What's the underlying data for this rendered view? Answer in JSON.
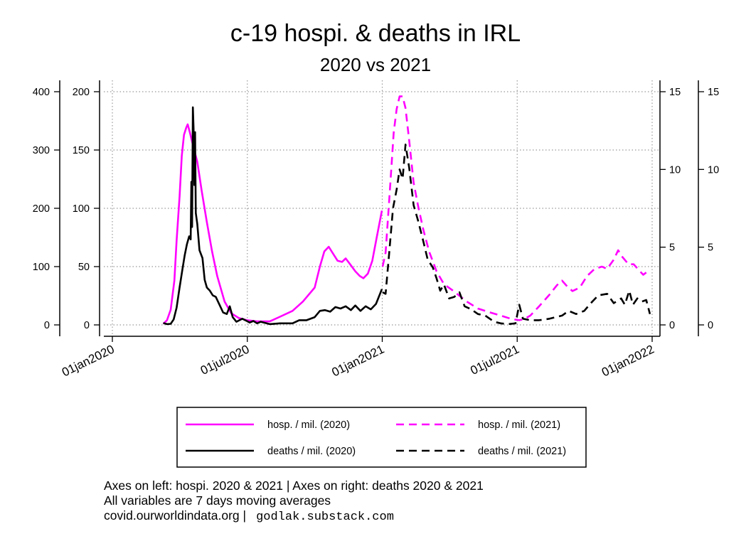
{
  "chart_data": {
    "type": "line",
    "title": "c-19 hospi. & deaths in IRL",
    "subtitle": "2020 vs 2021",
    "x_ticks": [
      "01jan2020",
      "01jul2020",
      "01jan2021",
      "01jul2021",
      "01jan2022"
    ],
    "y_axes": {
      "left_outer": {
        "ticks": [
          0,
          100,
          200,
          300,
          400
        ],
        "range": [
          0,
          400
        ]
      },
      "left_inner": {
        "ticks": [
          0,
          50,
          100,
          150,
          200
        ],
        "range": [
          0,
          200
        ]
      },
      "right_inner": {
        "ticks": [
          0,
          5,
          10,
          15
        ],
        "range": [
          0,
          15
        ]
      },
      "right_outer": {
        "ticks": [
          0,
          5,
          10,
          15
        ],
        "range": [
          0,
          15
        ]
      }
    },
    "grid": true,
    "legend_position": "bottom",
    "series": [
      {
        "name": "hosp. / mil. (2020)",
        "axis": "left_inner",
        "color": "#ff00ff",
        "dash": "solid",
        "points": [
          [
            "2020-03-10",
            1
          ],
          [
            "2020-03-15",
            4
          ],
          [
            "2020-03-20",
            13
          ],
          [
            "2020-03-25",
            38
          ],
          [
            "2020-03-28",
            72
          ],
          [
            "2020-04-01",
            110
          ],
          [
            "2020-04-04",
            145
          ],
          [
            "2020-04-07",
            163
          ],
          [
            "2020-04-10",
            169
          ],
          [
            "2020-04-12",
            172
          ],
          [
            "2020-04-15",
            165
          ],
          [
            "2020-04-20",
            152
          ],
          [
            "2020-04-25",
            140
          ],
          [
            "2020-05-01",
            115
          ],
          [
            "2020-05-08",
            88
          ],
          [
            "2020-05-15",
            63
          ],
          [
            "2020-05-22",
            42
          ],
          [
            "2020-06-01",
            20
          ],
          [
            "2020-06-10",
            10
          ],
          [
            "2020-06-20",
            6
          ],
          [
            "2020-07-01",
            4
          ],
          [
            "2020-07-15",
            3
          ],
          [
            "2020-08-01",
            3
          ],
          [
            "2020-08-15",
            7
          ],
          [
            "2020-09-01",
            12
          ],
          [
            "2020-09-15",
            20
          ],
          [
            "2020-10-01",
            32
          ],
          [
            "2020-10-08",
            50
          ],
          [
            "2020-10-14",
            63
          ],
          [
            "2020-10-20",
            67
          ],
          [
            "2020-10-25",
            62
          ],
          [
            "2020-11-01",
            55
          ],
          [
            "2020-11-07",
            54
          ],
          [
            "2020-11-12",
            57
          ],
          [
            "2020-11-18",
            52
          ],
          [
            "2020-11-25",
            46
          ],
          [
            "2020-12-01",
            42
          ],
          [
            "2020-12-06",
            40
          ],
          [
            "2020-12-12",
            44
          ],
          [
            "2020-12-18",
            55
          ],
          [
            "2020-12-24",
            75
          ],
          [
            "2020-12-31",
            98
          ]
        ]
      },
      {
        "name": "hosp. / mil. (2021)",
        "axis": "left_inner",
        "color": "#ff00ff",
        "dash": "dashed",
        "points": [
          [
            "2021-01-01",
            50
          ],
          [
            "2021-01-05",
            62
          ],
          [
            "2021-01-10",
            108
          ],
          [
            "2021-01-16",
            165
          ],
          [
            "2021-01-20",
            185
          ],
          [
            "2021-01-24",
            196
          ],
          [
            "2021-01-28",
            196
          ],
          [
            "2021-02-01",
            186
          ],
          [
            "2021-02-06",
            158
          ],
          [
            "2021-02-12",
            122
          ],
          [
            "2021-02-18",
            102
          ],
          [
            "2021-02-25",
            82
          ],
          [
            "2021-03-05",
            63
          ],
          [
            "2021-03-15",
            46
          ],
          [
            "2021-03-25",
            35
          ],
          [
            "2021-04-05",
            30
          ],
          [
            "2021-04-15",
            25
          ],
          [
            "2021-04-25",
            20
          ],
          [
            "2021-05-10",
            14
          ],
          [
            "2021-05-25",
            11
          ],
          [
            "2021-06-10",
            8
          ],
          [
            "2021-06-25",
            5
          ],
          [
            "2021-07-05",
            4
          ],
          [
            "2021-07-12",
            5
          ],
          [
            "2021-07-20",
            8
          ],
          [
            "2021-08-01",
            16
          ],
          [
            "2021-08-15",
            26
          ],
          [
            "2021-08-25",
            34
          ],
          [
            "2021-09-01",
            38
          ],
          [
            "2021-09-08",
            33
          ],
          [
            "2021-09-15",
            29
          ],
          [
            "2021-09-25",
            32
          ],
          [
            "2021-10-05",
            42
          ],
          [
            "2021-10-15",
            48
          ],
          [
            "2021-10-25",
            50
          ],
          [
            "2021-11-01",
            48
          ],
          [
            "2021-11-10",
            56
          ],
          [
            "2021-11-16",
            64
          ],
          [
            "2021-11-22",
            58
          ],
          [
            "2021-11-30",
            52
          ],
          [
            "2021-12-07",
            52
          ],
          [
            "2021-12-14",
            47
          ],
          [
            "2021-12-20",
            43
          ],
          [
            "2021-12-26",
            46
          ]
        ]
      },
      {
        "name": "deaths / mil. (2020)",
        "axis": "right_inner",
        "color": "#000000",
        "dash": "solid",
        "points": [
          [
            "2020-03-10",
            0.12
          ],
          [
            "2020-03-15",
            0.05
          ],
          [
            "2020-03-20",
            0.07
          ],
          [
            "2020-03-24",
            0.35
          ],
          [
            "2020-03-28",
            1.1
          ],
          [
            "2020-04-01",
            2.4
          ],
          [
            "2020-04-05",
            3.6
          ],
          [
            "2020-04-08",
            4.5
          ],
          [
            "2020-04-11",
            5.2
          ],
          [
            "2020-04-14",
            5.7
          ],
          [
            "2020-04-16",
            5.5
          ],
          [
            "2020-04-17",
            9.2
          ],
          [
            "2020-04-18",
            6.3
          ],
          [
            "2020-04-19",
            14.0
          ],
          [
            "2020-04-20",
            12.6
          ],
          [
            "2020-04-21",
            9.0
          ],
          [
            "2020-04-22",
            12.4
          ],
          [
            "2020-04-23",
            7.2
          ],
          [
            "2020-04-25",
            6.5
          ],
          [
            "2020-04-28",
            4.8
          ],
          [
            "2020-05-02",
            4.3
          ],
          [
            "2020-05-05",
            2.9
          ],
          [
            "2020-05-08",
            2.4
          ],
          [
            "2020-05-12",
            2.2
          ],
          [
            "2020-05-16",
            1.9
          ],
          [
            "2020-05-20",
            1.8
          ],
          [
            "2020-05-25",
            1.3
          ],
          [
            "2020-05-30",
            0.8
          ],
          [
            "2020-06-04",
            0.7
          ],
          [
            "2020-06-08",
            1.2
          ],
          [
            "2020-06-12",
            0.5
          ],
          [
            "2020-06-17",
            0.2
          ],
          [
            "2020-06-25",
            0.4
          ],
          [
            "2020-07-01",
            0.25
          ],
          [
            "2020-07-05",
            0.15
          ],
          [
            "2020-07-10",
            0.25
          ],
          [
            "2020-07-15",
            0.1
          ],
          [
            "2020-07-20",
            0.2
          ],
          [
            "2020-08-01",
            0.05
          ],
          [
            "2020-08-15",
            0.1
          ],
          [
            "2020-09-01",
            0.1
          ],
          [
            "2020-09-10",
            0.3
          ],
          [
            "2020-09-20",
            0.3
          ],
          [
            "2020-10-01",
            0.5
          ],
          [
            "2020-10-08",
            0.9
          ],
          [
            "2020-10-15",
            0.95
          ],
          [
            "2020-10-22",
            0.85
          ],
          [
            "2020-10-29",
            1.15
          ],
          [
            "2020-11-05",
            1.05
          ],
          [
            "2020-11-12",
            1.2
          ],
          [
            "2020-11-19",
            0.95
          ],
          [
            "2020-11-25",
            1.25
          ],
          [
            "2020-12-02",
            0.9
          ],
          [
            "2020-12-09",
            1.2
          ],
          [
            "2020-12-16",
            1.0
          ],
          [
            "2020-12-23",
            1.35
          ],
          [
            "2020-12-31",
            2.3
          ]
        ]
      },
      {
        "name": "deaths / mil. (2021)",
        "axis": "right_inner",
        "color": "#000000",
        "dash": "dashed",
        "points": [
          [
            "2021-01-01",
            2.1
          ],
          [
            "2021-01-05",
            2.0
          ],
          [
            "2021-01-10",
            4.7
          ],
          [
            "2021-01-15",
            7.5
          ],
          [
            "2021-01-20",
            8.7
          ],
          [
            "2021-01-24",
            10.0
          ],
          [
            "2021-01-28",
            9.4
          ],
          [
            "2021-02-01",
            11.6
          ],
          [
            "2021-02-06",
            10.1
          ],
          [
            "2021-02-12",
            7.7
          ],
          [
            "2021-02-18",
            6.7
          ],
          [
            "2021-02-25",
            5.4
          ],
          [
            "2021-03-03",
            4.2
          ],
          [
            "2021-03-10",
            3.7
          ],
          [
            "2021-03-15",
            3.0
          ],
          [
            "2021-03-20",
            2.2
          ],
          [
            "2021-03-25",
            2.6
          ],
          [
            "2021-04-01",
            1.7
          ],
          [
            "2021-04-08",
            1.8
          ],
          [
            "2021-04-15",
            2.1
          ],
          [
            "2021-04-22",
            1.2
          ],
          [
            "2021-05-01",
            1.0
          ],
          [
            "2021-05-10",
            0.7
          ],
          [
            "2021-05-20",
            0.6
          ],
          [
            "2021-06-01",
            0.2
          ],
          [
            "2021-06-10",
            0.1
          ],
          [
            "2021-06-20",
            0.05
          ],
          [
            "2021-06-30",
            0.1
          ],
          [
            "2021-07-05",
            1.3
          ],
          [
            "2021-07-10",
            0.4
          ],
          [
            "2021-07-20",
            0.3
          ],
          [
            "2021-08-01",
            0.3
          ],
          [
            "2021-08-15",
            0.4
          ],
          [
            "2021-09-01",
            0.6
          ],
          [
            "2021-09-10",
            0.9
          ],
          [
            "2021-09-20",
            0.7
          ],
          [
            "2021-10-01",
            0.9
          ],
          [
            "2021-10-10",
            1.4
          ],
          [
            "2021-10-20",
            1.9
          ],
          [
            "2021-11-01",
            2.0
          ],
          [
            "2021-11-10",
            1.4
          ],
          [
            "2021-11-20",
            1.7
          ],
          [
            "2021-11-25",
            1.3
          ],
          [
            "2021-12-01",
            2.2
          ],
          [
            "2021-12-06",
            1.3
          ],
          [
            "2021-12-12",
            1.7
          ],
          [
            "2021-12-18",
            1.5
          ],
          [
            "2021-12-24",
            1.6
          ],
          [
            "2021-12-29",
            0.7
          ]
        ]
      }
    ]
  },
  "legend": [
    {
      "label": "hosp. / mil. (2020)",
      "color": "#ff00ff",
      "dash": "solid"
    },
    {
      "label": "hosp. / mil. (2021)",
      "color": "#ff00ff",
      "dash": "dashed"
    },
    {
      "label": "deaths / mil. (2020)",
      "color": "#000000",
      "dash": "solid"
    },
    {
      "label": "deaths / mil. (2021)",
      "color": "#000000",
      "dash": "dashed"
    }
  ],
  "notes": {
    "line1": "Axes on left: hospi. 2020 & 2021 | Axes on right: deaths 2020 & 2021",
    "line2": "All variables are 7 days moving averages",
    "line3": "covid.ourworldindata.org |",
    "substack": "godlak.substack.com"
  }
}
